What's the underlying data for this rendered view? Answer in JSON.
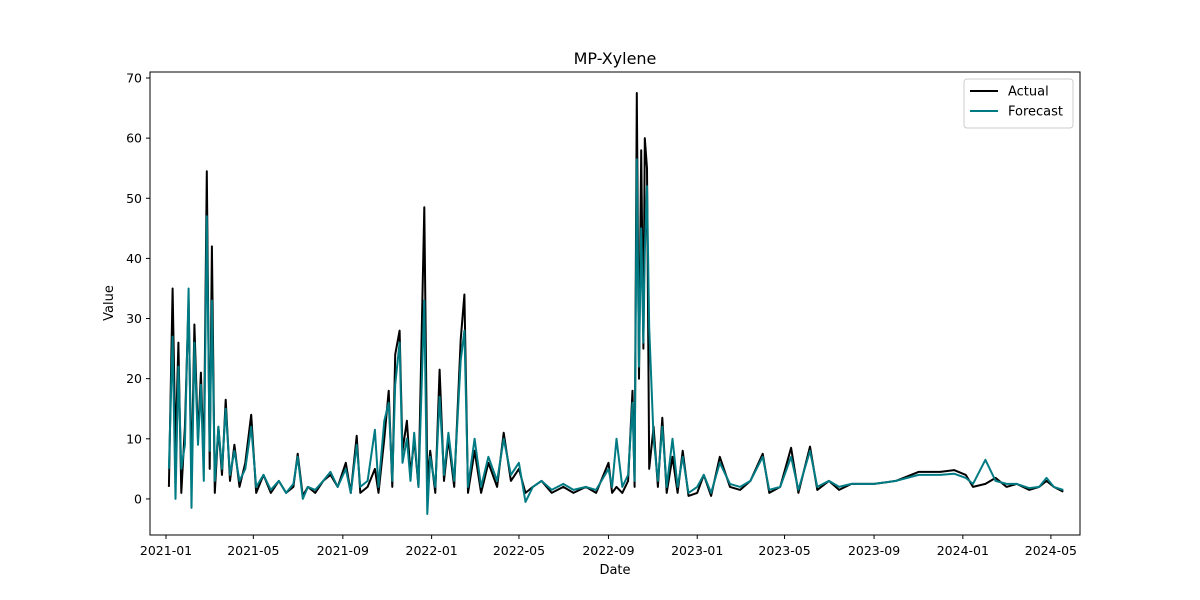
{
  "chart_data": {
    "type": "line",
    "title": "MP-Xylene",
    "xlabel": "Date",
    "ylabel": "Value",
    "x_ticks": [
      "2021-01",
      "2021-05",
      "2021-09",
      "2022-01",
      "2022-05",
      "2022-09",
      "2023-01",
      "2023-05",
      "2023-09",
      "2024-01",
      "2024-05"
    ],
    "y_ticks": [
      0,
      10,
      20,
      30,
      40,
      50,
      60,
      70
    ],
    "xlim": [
      "2020-12-10",
      "2024-06-10"
    ],
    "ylim": [
      -6,
      71
    ],
    "grid": false,
    "legend": {
      "position": "top-right"
    },
    "series": [
      {
        "name": "Actual",
        "color": "#000000",
        "points": [
          [
            "2021-01-05",
            2
          ],
          [
            "2021-01-10",
            35
          ],
          [
            "2021-01-14",
            8
          ],
          [
            "2021-01-18",
            26
          ],
          [
            "2021-01-22",
            1
          ],
          [
            "2021-01-27",
            12
          ],
          [
            "2021-02-01",
            33
          ],
          [
            "2021-02-05",
            3
          ],
          [
            "2021-02-09",
            29
          ],
          [
            "2021-02-14",
            10
          ],
          [
            "2021-02-18",
            21
          ],
          [
            "2021-02-22",
            6
          ],
          [
            "2021-02-26",
            54.5
          ],
          [
            "2021-03-02",
            5
          ],
          [
            "2021-03-05",
            42
          ],
          [
            "2021-03-09",
            1
          ],
          [
            "2021-03-14",
            12
          ],
          [
            "2021-03-19",
            4
          ],
          [
            "2021-03-24",
            16.5
          ],
          [
            "2021-03-30",
            3
          ],
          [
            "2021-04-05",
            9
          ],
          [
            "2021-04-12",
            2
          ],
          [
            "2021-04-20",
            6
          ],
          [
            "2021-04-28",
            14
          ],
          [
            "2021-05-05",
            1
          ],
          [
            "2021-05-15",
            4
          ],
          [
            "2021-05-25",
            1
          ],
          [
            "2021-06-05",
            3
          ],
          [
            "2021-06-15",
            1
          ],
          [
            "2021-06-25",
            2
          ],
          [
            "2021-07-01",
            7.5
          ],
          [
            "2021-07-08",
            0.5
          ],
          [
            "2021-07-15",
            2
          ],
          [
            "2021-07-25",
            1
          ],
          [
            "2021-08-05",
            3
          ],
          [
            "2021-08-15",
            4
          ],
          [
            "2021-08-25",
            2
          ],
          [
            "2021-09-05",
            6
          ],
          [
            "2021-09-12",
            1
          ],
          [
            "2021-09-20",
            10.5
          ],
          [
            "2021-09-25",
            1
          ],
          [
            "2021-10-05",
            2
          ],
          [
            "2021-10-15",
            5
          ],
          [
            "2021-10-20",
            1
          ],
          [
            "2021-10-28",
            10
          ],
          [
            "2021-11-03",
            18
          ],
          [
            "2021-11-08",
            2
          ],
          [
            "2021-11-12",
            24
          ],
          [
            "2021-11-18",
            28
          ],
          [
            "2021-11-22",
            8
          ],
          [
            "2021-11-28",
            13
          ],
          [
            "2021-12-03",
            4
          ],
          [
            "2021-12-08",
            10
          ],
          [
            "2021-12-14",
            2
          ],
          [
            "2021-12-22",
            48.5
          ],
          [
            "2021-12-26",
            3
          ],
          [
            "2021-12-30",
            8
          ],
          [
            "2022-01-06",
            1
          ],
          [
            "2022-01-12",
            21.5
          ],
          [
            "2022-01-18",
            3
          ],
          [
            "2022-01-24",
            10
          ],
          [
            "2022-02-01",
            2
          ],
          [
            "2022-02-10",
            26.5
          ],
          [
            "2022-02-15",
            34
          ],
          [
            "2022-02-20",
            1
          ],
          [
            "2022-03-01",
            8
          ],
          [
            "2022-03-10",
            1
          ],
          [
            "2022-03-20",
            6
          ],
          [
            "2022-04-01",
            2
          ],
          [
            "2022-04-10",
            11
          ],
          [
            "2022-04-20",
            3
          ],
          [
            "2022-05-01",
            5
          ],
          [
            "2022-05-10",
            1
          ],
          [
            "2022-05-20",
            2
          ],
          [
            "2022-06-01",
            3
          ],
          [
            "2022-06-15",
            1
          ],
          [
            "2022-07-01",
            2
          ],
          [
            "2022-07-15",
            1
          ],
          [
            "2022-08-01",
            2
          ],
          [
            "2022-08-15",
            1
          ],
          [
            "2022-09-01",
            6
          ],
          [
            "2022-09-06",
            1
          ],
          [
            "2022-09-12",
            2
          ],
          [
            "2022-09-20",
            1
          ],
          [
            "2022-09-28",
            3
          ],
          [
            "2022-10-04",
            18
          ],
          [
            "2022-10-07",
            2
          ],
          [
            "2022-10-10",
            67.5
          ],
          [
            "2022-10-13",
            20
          ],
          [
            "2022-10-16",
            58
          ],
          [
            "2022-10-19",
            25
          ],
          [
            "2022-10-21",
            60
          ],
          [
            "2022-10-24",
            55
          ],
          [
            "2022-10-27",
            5
          ],
          [
            "2022-11-02",
            12
          ],
          [
            "2022-11-08",
            2
          ],
          [
            "2022-11-14",
            13.5
          ],
          [
            "2022-11-20",
            1
          ],
          [
            "2022-11-28",
            7
          ],
          [
            "2022-12-05",
            1
          ],
          [
            "2022-12-12",
            8
          ],
          [
            "2022-12-20",
            0.5
          ],
          [
            "2023-01-01",
            1
          ],
          [
            "2023-01-10",
            4
          ],
          [
            "2023-01-20",
            0.5
          ],
          [
            "2023-02-01",
            7
          ],
          [
            "2023-02-15",
            2
          ],
          [
            "2023-03-01",
            1.5
          ],
          [
            "2023-03-15",
            3
          ],
          [
            "2023-04-01",
            7.5
          ],
          [
            "2023-04-10",
            1
          ],
          [
            "2023-04-25",
            2
          ],
          [
            "2023-05-10",
            8.5
          ],
          [
            "2023-05-20",
            1
          ],
          [
            "2023-06-05",
            8.7
          ],
          [
            "2023-06-15",
            1.5
          ],
          [
            "2023-07-01",
            3
          ],
          [
            "2023-07-15",
            1.5
          ],
          [
            "2023-08-01",
            2.5
          ],
          [
            "2023-09-01",
            2.5
          ],
          [
            "2023-10-01",
            3
          ],
          [
            "2023-11-01",
            4.5
          ],
          [
            "2023-12-01",
            4.5
          ],
          [
            "2023-12-20",
            4.8
          ],
          [
            "2024-01-05",
            4
          ],
          [
            "2024-01-15",
            2
          ],
          [
            "2024-02-01",
            2.5
          ],
          [
            "2024-02-15",
            3.5
          ],
          [
            "2024-03-01",
            2
          ],
          [
            "2024-03-15",
            2.5
          ],
          [
            "2024-04-01",
            1.5
          ],
          [
            "2024-04-15",
            2
          ],
          [
            "2024-04-25",
            3
          ],
          [
            "2024-05-05",
            2
          ],
          [
            "2024-05-18",
            1.2
          ]
        ]
      },
      {
        "name": "Forecast",
        "color": "#007b83",
        "points": [
          [
            "2021-01-05",
            5
          ],
          [
            "2021-01-10",
            27
          ],
          [
            "2021-01-14",
            0
          ],
          [
            "2021-01-18",
            22
          ],
          [
            "2021-01-22",
            5
          ],
          [
            "2021-01-27",
            9
          ],
          [
            "2021-02-01",
            35
          ],
          [
            "2021-02-05",
            -1.5
          ],
          [
            "2021-02-09",
            26
          ],
          [
            "2021-02-14",
            9
          ],
          [
            "2021-02-18",
            19
          ],
          [
            "2021-02-22",
            3
          ],
          [
            "2021-02-26",
            47
          ],
          [
            "2021-03-02",
            8
          ],
          [
            "2021-03-05",
            33
          ],
          [
            "2021-03-09",
            3
          ],
          [
            "2021-03-14",
            12
          ],
          [
            "2021-03-19",
            5
          ],
          [
            "2021-03-24",
            15
          ],
          [
            "2021-03-30",
            4
          ],
          [
            "2021-04-05",
            8
          ],
          [
            "2021-04-12",
            3
          ],
          [
            "2021-04-20",
            5
          ],
          [
            "2021-04-28",
            12
          ],
          [
            "2021-05-05",
            2
          ],
          [
            "2021-05-15",
            4
          ],
          [
            "2021-05-25",
            1.5
          ],
          [
            "2021-06-05",
            3
          ],
          [
            "2021-06-15",
            1
          ],
          [
            "2021-06-25",
            2.5
          ],
          [
            "2021-07-01",
            7
          ],
          [
            "2021-07-08",
            0
          ],
          [
            "2021-07-15",
            2
          ],
          [
            "2021-07-25",
            1.5
          ],
          [
            "2021-08-05",
            3
          ],
          [
            "2021-08-15",
            4.5
          ],
          [
            "2021-08-25",
            2
          ],
          [
            "2021-09-05",
            5
          ],
          [
            "2021-09-12",
            1
          ],
          [
            "2021-09-20",
            9
          ],
          [
            "2021-09-25",
            2
          ],
          [
            "2021-10-05",
            3
          ],
          [
            "2021-10-15",
            11.5
          ],
          [
            "2021-10-20",
            2
          ],
          [
            "2021-10-28",
            13
          ],
          [
            "2021-11-03",
            16
          ],
          [
            "2021-11-08",
            3
          ],
          [
            "2021-11-12",
            19
          ],
          [
            "2021-11-18",
            26
          ],
          [
            "2021-11-22",
            6
          ],
          [
            "2021-11-28",
            10
          ],
          [
            "2021-12-03",
            3
          ],
          [
            "2021-12-08",
            11
          ],
          [
            "2021-12-14",
            2
          ],
          [
            "2021-12-22",
            33
          ],
          [
            "2021-12-26",
            -2.5
          ],
          [
            "2021-12-30",
            7
          ],
          [
            "2022-01-06",
            2
          ],
          [
            "2022-01-12",
            17
          ],
          [
            "2022-01-18",
            4
          ],
          [
            "2022-01-24",
            11
          ],
          [
            "2022-02-01",
            3
          ],
          [
            "2022-02-10",
            23
          ],
          [
            "2022-02-15",
            28
          ],
          [
            "2022-02-20",
            2
          ],
          [
            "2022-03-01",
            10
          ],
          [
            "2022-03-10",
            2
          ],
          [
            "2022-03-20",
            7
          ],
          [
            "2022-04-01",
            3
          ],
          [
            "2022-04-10",
            10
          ],
          [
            "2022-04-20",
            4
          ],
          [
            "2022-05-01",
            6
          ],
          [
            "2022-05-10",
            -0.5
          ],
          [
            "2022-05-20",
            2
          ],
          [
            "2022-06-01",
            3
          ],
          [
            "2022-06-15",
            1.5
          ],
          [
            "2022-07-01",
            2.5
          ],
          [
            "2022-07-15",
            1.5
          ],
          [
            "2022-08-01",
            2
          ],
          [
            "2022-08-15",
            1.5
          ],
          [
            "2022-09-01",
            5
          ],
          [
            "2022-09-06",
            2
          ],
          [
            "2022-09-12",
            10
          ],
          [
            "2022-09-20",
            2
          ],
          [
            "2022-09-28",
            4
          ],
          [
            "2022-10-04",
            16
          ],
          [
            "2022-10-07",
            3
          ],
          [
            "2022-10-10",
            56.5
          ],
          [
            "2022-10-13",
            22
          ],
          [
            "2022-10-16",
            45
          ],
          [
            "2022-10-19",
            26
          ],
          [
            "2022-10-21",
            41
          ],
          [
            "2022-10-24",
            52
          ],
          [
            "2022-10-27",
            28.5
          ],
          [
            "2022-11-02",
            10
          ],
          [
            "2022-11-08",
            3
          ],
          [
            "2022-11-14",
            12
          ],
          [
            "2022-11-20",
            2
          ],
          [
            "2022-11-28",
            10
          ],
          [
            "2022-12-05",
            2
          ],
          [
            "2022-12-12",
            7
          ],
          [
            "2022-12-20",
            1
          ],
          [
            "2023-01-01",
            2
          ],
          [
            "2023-01-10",
            4
          ],
          [
            "2023-01-20",
            1
          ],
          [
            "2023-02-01",
            6
          ],
          [
            "2023-02-15",
            2.5
          ],
          [
            "2023-03-01",
            2
          ],
          [
            "2023-03-15",
            3
          ],
          [
            "2023-04-01",
            7
          ],
          [
            "2023-04-10",
            1.5
          ],
          [
            "2023-04-25",
            2
          ],
          [
            "2023-05-10",
            7
          ],
          [
            "2023-05-20",
            1.5
          ],
          [
            "2023-06-05",
            8
          ],
          [
            "2023-06-15",
            2
          ],
          [
            "2023-07-01",
            3
          ],
          [
            "2023-07-15",
            2
          ],
          [
            "2023-08-01",
            2.5
          ],
          [
            "2023-09-01",
            2.5
          ],
          [
            "2023-10-01",
            3
          ],
          [
            "2023-11-01",
            4
          ],
          [
            "2023-12-01",
            4
          ],
          [
            "2023-12-20",
            4.2
          ],
          [
            "2024-01-05",
            3.5
          ],
          [
            "2024-01-15",
            2.5
          ],
          [
            "2024-02-01",
            6.5
          ],
          [
            "2024-02-15",
            3
          ],
          [
            "2024-03-01",
            2.5
          ],
          [
            "2024-03-15",
            2.5
          ],
          [
            "2024-04-01",
            1.8
          ],
          [
            "2024-04-15",
            2
          ],
          [
            "2024-04-25",
            3.5
          ],
          [
            "2024-05-05",
            2
          ],
          [
            "2024-05-18",
            1.5
          ]
        ]
      }
    ]
  }
}
